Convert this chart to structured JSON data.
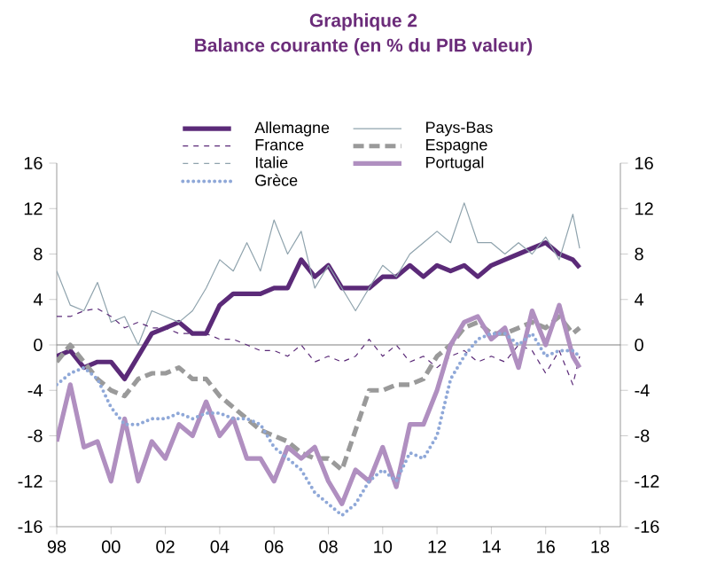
{
  "chart_data": {
    "type": "line",
    "title": "Graphique 2",
    "subtitle": "Balance courante (en % du PIB valeur)",
    "x": [
      1998,
      1998.5,
      1999,
      1999.5,
      2000,
      2000.5,
      2001,
      2001.5,
      2002,
      2002.5,
      2003,
      2003.5,
      2004,
      2004.5,
      2005,
      2005.5,
      2006,
      2006.5,
      2007,
      2007.5,
      2008,
      2008.5,
      2009,
      2009.5,
      2010,
      2010.5,
      2011,
      2011.5,
      2012,
      2012.5,
      2013,
      2013.5,
      2014,
      2014.5,
      2015,
      2015.5,
      2016,
      2016.5,
      2017,
      2017.25
    ],
    "series": [
      {
        "name": "Allemagne",
        "color": "#5b2a78",
        "line_style": "solid",
        "values": [
          -1,
          -0.5,
          -2,
          -1.5,
          -1.5,
          -3,
          -1,
          1,
          1.5,
          2,
          1,
          1,
          3.5,
          4.5,
          4.5,
          4.5,
          5,
          5,
          7.5,
          6,
          7,
          5,
          5,
          5,
          6,
          6,
          7,
          6,
          7,
          6.5,
          7,
          6,
          7,
          7.5,
          8,
          8.5,
          9,
          8,
          7.5,
          6.8
        ]
      },
      {
        "name": "Pays-Bas",
        "color": "#8fa3ad",
        "line_style": "solid",
        "values": [
          6.5,
          3.5,
          3,
          5.5,
          2,
          2.5,
          0,
          3,
          2.5,
          2,
          3,
          5,
          7.5,
          6.5,
          9,
          6.5,
          11,
          8,
          10,
          5,
          7,
          5,
          3,
          5,
          7,
          6,
          8,
          9,
          10,
          9,
          12.5,
          9,
          9,
          8,
          9,
          8,
          9.5,
          7.5,
          11.5,
          8.5
        ]
      },
      {
        "name": "France",
        "color": "#5b2a78",
        "line_style": "dashed",
        "values": [
          2.5,
          2.5,
          3,
          3.2,
          2.5,
          1.5,
          2,
          1.5,
          1.5,
          1,
          1,
          1,
          0.5,
          0.5,
          0,
          -0.5,
          -0.5,
          -1,
          0,
          -1.5,
          -1,
          -1.5,
          -1,
          0.5,
          -1,
          0,
          -1.5,
          -1,
          -2,
          -1,
          -0.5,
          -1.5,
          -1,
          -1.5,
          0,
          -0.5,
          -2.5,
          -0.5,
          -3.5,
          -1
        ]
      },
      {
        "name": "Espagne",
        "color": "#9a9a9a",
        "line_style": "dashed",
        "values": [
          -1.5,
          0,
          -1.5,
          -3,
          -4,
          -4.5,
          -3,
          -2.5,
          -2.5,
          -2,
          -3,
          -3,
          -4.5,
          -5.5,
          -6.5,
          -7.5,
          -8,
          -8.5,
          -9.5,
          -10,
          -10,
          -11,
          -7.5,
          -4,
          -4,
          -3.5,
          -3.5,
          -3,
          -1,
          0,
          1.5,
          2,
          1,
          1,
          1.5,
          2,
          1.5,
          2.5,
          1,
          1.5
        ]
      },
      {
        "name": "Italie",
        "color": "#8fa3ad",
        "line_style": "dashed",
        "values": [
          null,
          null,
          null,
          null,
          null,
          null,
          null,
          null,
          null,
          null,
          null,
          null,
          null,
          null,
          null,
          null,
          null,
          null,
          null,
          null,
          null,
          null,
          null,
          null,
          null,
          null,
          null,
          null,
          null,
          null,
          null,
          null,
          null,
          null,
          null,
          null,
          null,
          null,
          null,
          null
        ]
      },
      {
        "name": "Portugal",
        "color": "#b08fc0",
        "line_style": "solid",
        "values": [
          -8.5,
          -3.5,
          -9,
          -8.5,
          -12,
          -6.5,
          -12,
          -8.5,
          -10,
          -7,
          -8,
          -5,
          -8,
          -6.5,
          -10,
          -10,
          -12,
          -9,
          -10,
          -9,
          -12,
          -14,
          -11,
          -12,
          -9,
          -12.5,
          -7,
          -7,
          -4,
          0,
          2,
          2.5,
          0.5,
          1.5,
          -2,
          3,
          0,
          3.5,
          -1,
          -2
        ]
      },
      {
        "name": "Grèce",
        "color": "#8fa8d8",
        "line_style": "dotted",
        "values": [
          -3.5,
          -2.5,
          -2,
          -3,
          -5.5,
          -7,
          -7,
          -6.5,
          -6.5,
          -6,
          -6.5,
          -6,
          -6,
          -6.5,
          -6.5,
          -7,
          -9,
          -10,
          -11,
          -13,
          -14,
          -15,
          -14,
          -12,
          -11,
          -12,
          -9.5,
          -10,
          -8,
          -3,
          -1,
          0.5,
          1,
          1,
          0,
          1,
          -1,
          -0.5,
          -0.5,
          -1
        ]
      }
    ],
    "xlim": [
      1998,
      2018.75
    ],
    "xticks": [
      {
        "value": 1998,
        "label": "98"
      },
      {
        "value": 2000,
        "label": "00"
      },
      {
        "value": 2002,
        "label": "02"
      },
      {
        "value": 2004,
        "label": "04"
      },
      {
        "value": 2006,
        "label": "06"
      },
      {
        "value": 2008,
        "label": "08"
      },
      {
        "value": 2010,
        "label": "10"
      },
      {
        "value": 2012,
        "label": "12"
      },
      {
        "value": 2014,
        "label": "14"
      },
      {
        "value": 2016,
        "label": "16"
      },
      {
        "value": 2018,
        "label": "18"
      }
    ],
    "ylim": [
      -16,
      16
    ],
    "yticks": [
      -16,
      -12,
      -8,
      -4,
      0,
      4,
      8,
      12,
      16
    ],
    "y2lim": [
      -16,
      16
    ],
    "y2ticks": [
      -16,
      -12,
      -8,
      -4,
      0,
      4,
      8,
      12,
      16
    ],
    "ref_lines": [
      {
        "axis": "y",
        "value": 0,
        "color": "#808080"
      }
    ],
    "grid": false,
    "legend": "top"
  }
}
